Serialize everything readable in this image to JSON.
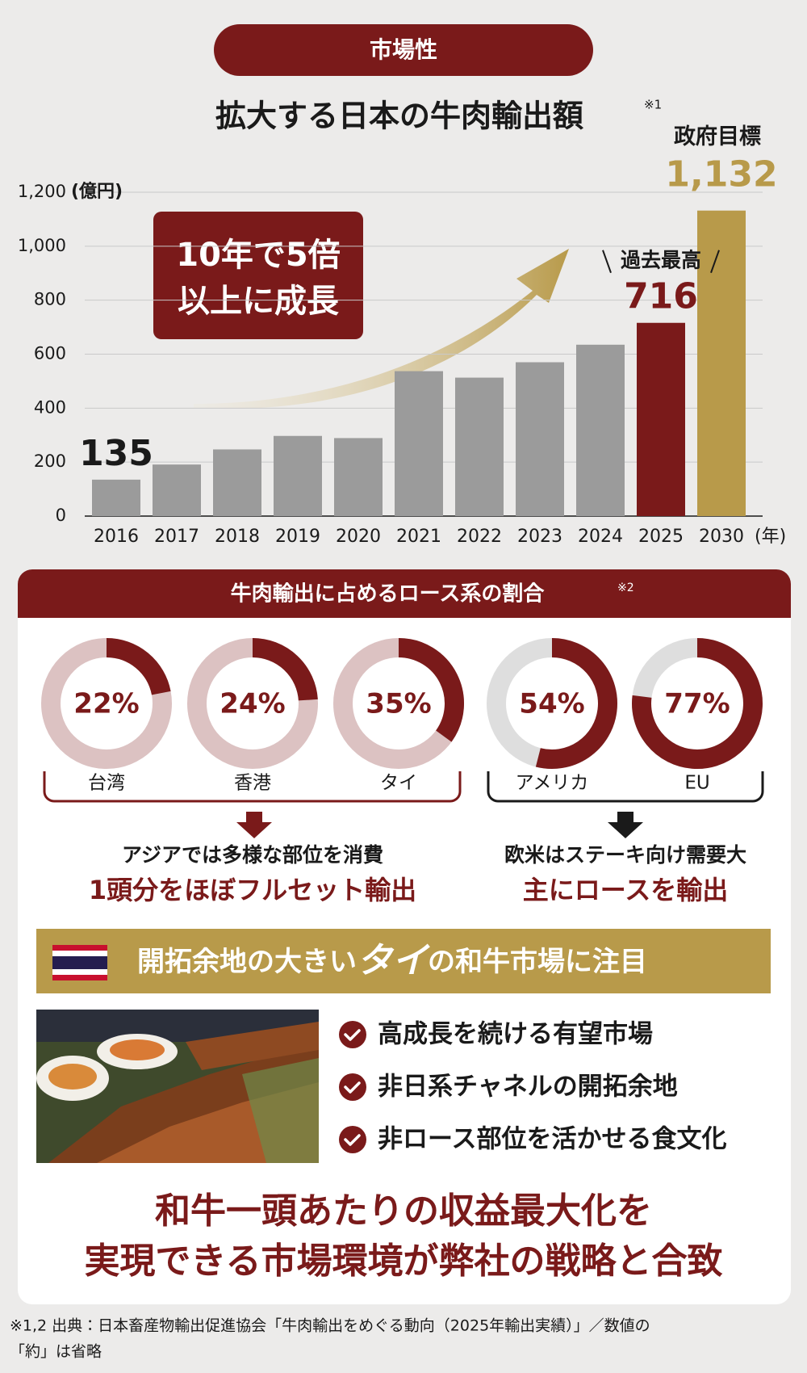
{
  "header": {
    "badge": "市場性"
  },
  "chart_data": [
    {
      "type": "bar",
      "title": "拡大する日本の牛肉輸出額",
      "note": "※1",
      "y_label": "(億円)",
      "x_label": "(年)",
      "categories": [
        "2016",
        "2017",
        "2018",
        "2019",
        "2020",
        "2021",
        "2022",
        "2023",
        "2024",
        "2025",
        "2030"
      ],
      "values": [
        135,
        191,
        247,
        297,
        289,
        537,
        513,
        570,
        635,
        716,
        1132
      ],
      "value_labels": [
        "135",
        null,
        null,
        null,
        null,
        null,
        null,
        null,
        null,
        "716",
        "1,132"
      ],
      "colors": [
        "#9b9b9b",
        "#9b9b9b",
        "#9b9b9b",
        "#9b9b9b",
        "#9b9b9b",
        "#9b9b9b",
        "#9b9b9b",
        "#9b9b9b",
        "#9b9b9b",
        "#7a1a1a",
        "#b89a4a"
      ],
      "ylim": [
        0,
        1200
      ],
      "yticks": [
        0,
        200,
        400,
        600,
        800,
        {
          "value": 1000,
          "label": "1,000"
        },
        {
          "value": 1200,
          "label": "1,200"
        }
      ],
      "grid": true,
      "annotations": {
        "record": "過去最高",
        "target": "政府目標"
      },
      "callout": [
        "10年で5倍",
        "以上に成長"
      ]
    },
    {
      "type": "donut",
      "title": "牛肉輸出に占めるロース系の割合",
      "note": "※2",
      "categories": [
        "台湾",
        "香港",
        "タイ",
        "アメリカ",
        "EU"
      ],
      "values": [
        22,
        24,
        35,
        54,
        77
      ],
      "value_labels": [
        "22%",
        "24%",
        "35%",
        "54%",
        "77%"
      ],
      "color": "#7a1a1a",
      "track_colors": [
        "#dcc2c2",
        "#dcc2c2",
        "#dcc2c2",
        "#dedede",
        "#dedede"
      ],
      "groups": [
        {
          "line1": "アジアでは多様な部位を消費",
          "line2": "1頭分をほぼフルセット輸出"
        },
        {
          "line1": "欧米はステーキ向け需要大",
          "line2": "主にロースを輸出"
        }
      ]
    }
  ],
  "banner": {
    "before": "開拓余地の大きい",
    "emphasis": "タイ",
    "after": "の和牛市場に注目"
  },
  "checklist": [
    "高成長を続ける有望市場",
    "非日系チャネルの開拓余地",
    "非ロース部位を活かせる食文化"
  ],
  "conclusion": [
    "和牛一頭あたりの収益最大化を",
    "実現できる市場環境が弊社の戦略と合致"
  ],
  "footnote": [
    "※1,2 出典：日本畜産物輸出促進協会「牛肉輸出をめぐる動向（2025年輸出実績）」／数値の",
    "「約」は省略"
  ]
}
